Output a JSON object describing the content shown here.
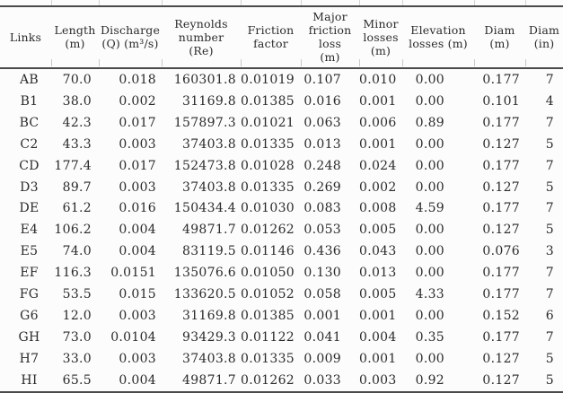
{
  "colors": {
    "background": "#fcfcfc",
    "text": "#2b2b2b",
    "rule": "#4a4a4a",
    "tick": "#b3b3b3"
  },
  "table": {
    "columns": [
      {
        "label": "Links"
      },
      {
        "label": "Length\n(m)"
      },
      {
        "label": "Discharge\n(Q) (m³/s)"
      },
      {
        "label": "Reynolds\nnumber\n(Re)"
      },
      {
        "label": "Friction\nfactor"
      },
      {
        "label": "Major\nfriction\nloss\n(m)"
      },
      {
        "label": "Minor\nlosses\n(m)"
      },
      {
        "label": "Elevation\nlosses (m)"
      },
      {
        "label": "Diam\n(m)"
      },
      {
        "label": "Diam\n(in)"
      }
    ],
    "rows": [
      [
        "AB",
        "70.0",
        "0.018",
        "160301.8",
        "0.01019",
        "0.107",
        "0.010",
        "0.00",
        "0.177",
        "7"
      ],
      [
        "B1",
        "38.0",
        "0.002",
        "31169.8",
        "0.01385",
        "0.016",
        "0.001",
        "0.00",
        "0.101",
        "4"
      ],
      [
        "BC",
        "42.3",
        "0.017",
        "157897.3",
        "0.01021",
        "0.063",
        "0.006",
        "0.89",
        "0.177",
        "7"
      ],
      [
        "C2",
        "43.3",
        "0.003",
        "37403.8",
        "0.01335",
        "0.013",
        "0.001",
        "0.00",
        "0.127",
        "5"
      ],
      [
        "CD",
        "177.4",
        "0.017",
        "152473.8",
        "0.01028",
        "0.248",
        "0.024",
        "0.00",
        "0.177",
        "7"
      ],
      [
        "D3",
        "89.7",
        "0.003",
        "37403.8",
        "0.01335",
        "0.269",
        "0.002",
        "0.00",
        "0.127",
        "5"
      ],
      [
        "DE",
        "61.2",
        "0.016",
        "150434.4",
        "0.01030",
        "0.083",
        "0.008",
        "4.59",
        "0.177",
        "7"
      ],
      [
        "E4",
        "106.2",
        "0.004",
        "49871.7",
        "0.01262",
        "0.053",
        "0.005",
        "0.00",
        "0.127",
        "5"
      ],
      [
        "E5",
        "74.0",
        "0.004",
        "83119.5",
        "0.01146",
        "0.436",
        "0.043",
        "0.00",
        "0.076",
        "3"
      ],
      [
        "EF",
        "116.3",
        "0.0151",
        "135076.6",
        "0.01050",
        "0.130",
        "0.013",
        "0.00",
        "0.177",
        "7"
      ],
      [
        "FG",
        "53.5",
        "0.015",
        "133620.5",
        "0.01052",
        "0.058",
        "0.005",
        "4.33",
        "0.177",
        "7"
      ],
      [
        "G6",
        "12.0",
        "0.003",
        "31169.8",
        "0.01385",
        "0.001",
        "0.001",
        "0.00",
        "0.152",
        "6"
      ],
      [
        "GH",
        "73.0",
        "0.0104",
        "93429.3",
        "0.01122",
        "0.041",
        "0.004",
        "0.35",
        "0.177",
        "7"
      ],
      [
        "H7",
        "33.0",
        "0.003",
        "37403.8",
        "0.01335",
        "0.009",
        "0.001",
        "0.00",
        "0.127",
        "5"
      ],
      [
        "HI",
        "65.5",
        "0.004",
        "49871.7",
        "0.01262",
        "0.033",
        "0.003",
        "0.92",
        "0.127",
        "5"
      ]
    ]
  }
}
